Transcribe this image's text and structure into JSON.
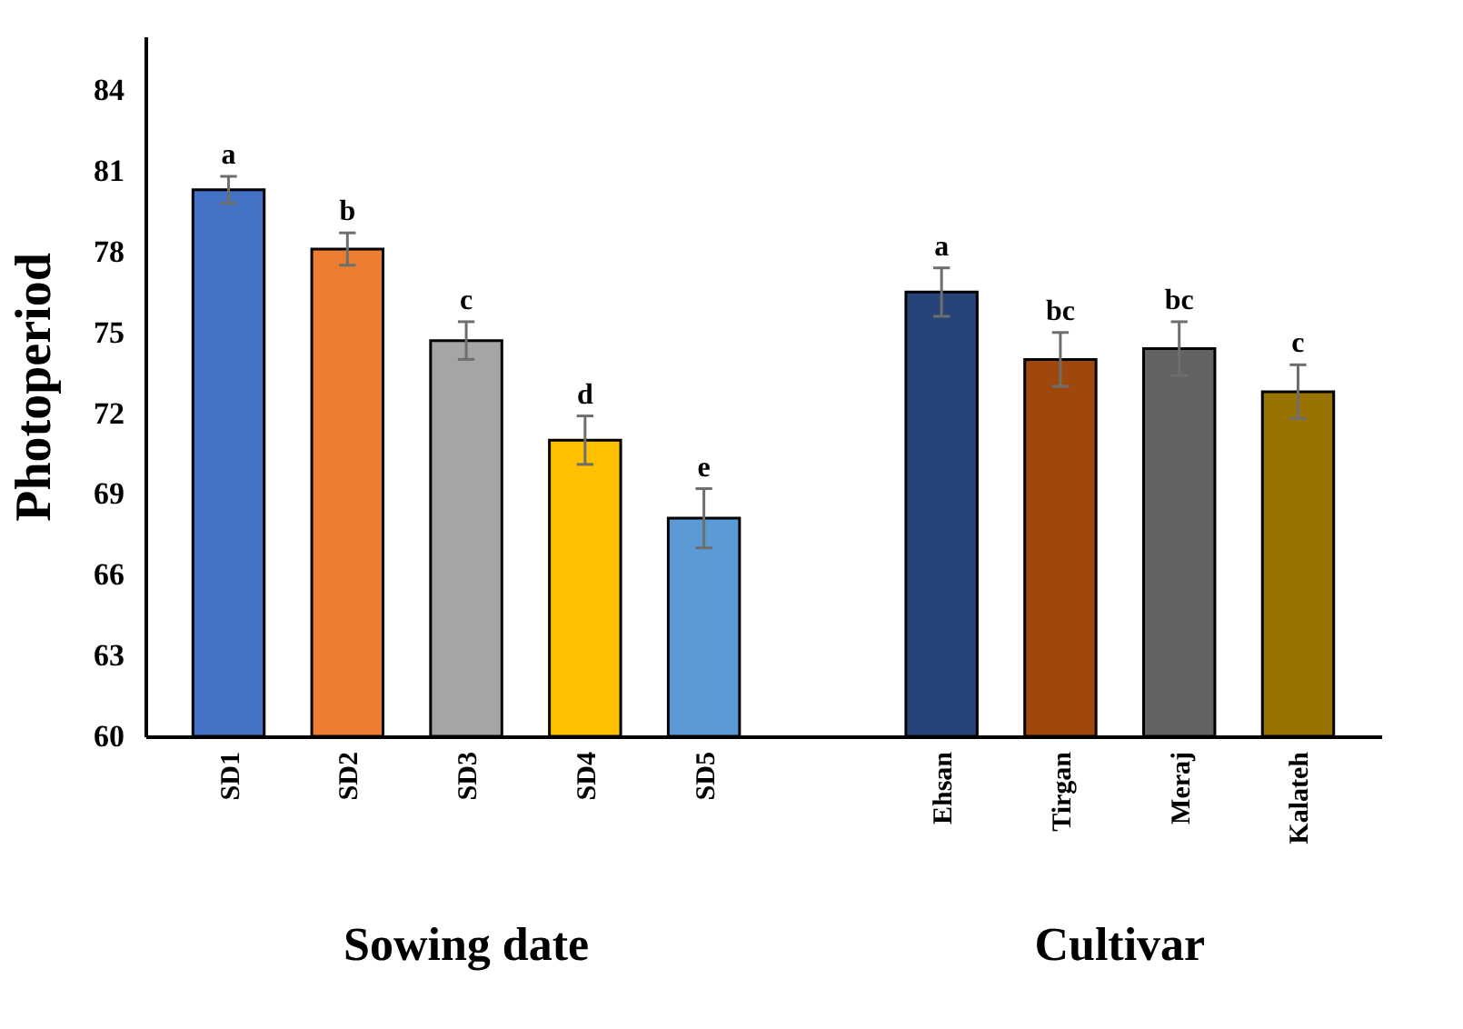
{
  "chart_data": {
    "type": "bar",
    "ylabel": "Photoperiod",
    "categories": [
      "SD1",
      "SD2",
      "SD3",
      "SD4",
      "SD5",
      null,
      "Ehsan",
      "Tirgan",
      "Meraj",
      "Kalateh"
    ],
    "values": [
      80.3,
      78.1,
      74.7,
      71.0,
      68.1,
      null,
      76.5,
      74.0,
      74.4,
      72.8
    ],
    "errors": [
      0.5,
      0.6,
      0.7,
      0.9,
      1.1,
      null,
      0.9,
      1.0,
      1.0,
      1.0
    ],
    "colors": [
      "#4472c4",
      "#ed7d31",
      "#a5a5a5",
      "#ffc000",
      "#5b9bd5",
      null,
      "#264478",
      "#9e480e",
      "#636363",
      "#997300"
    ],
    "value_labels": [
      "a",
      "b",
      "c",
      "d",
      "e",
      null,
      "a",
      "bc",
      "bc",
      "c"
    ],
    "ylim": [
      60,
      86
    ],
    "yticks": [
      60,
      63,
      66,
      69,
      72,
      75,
      78,
      81,
      84
    ],
    "grid": false,
    "annotations": [
      "Sowing date",
      "Cultivar"
    ]
  }
}
